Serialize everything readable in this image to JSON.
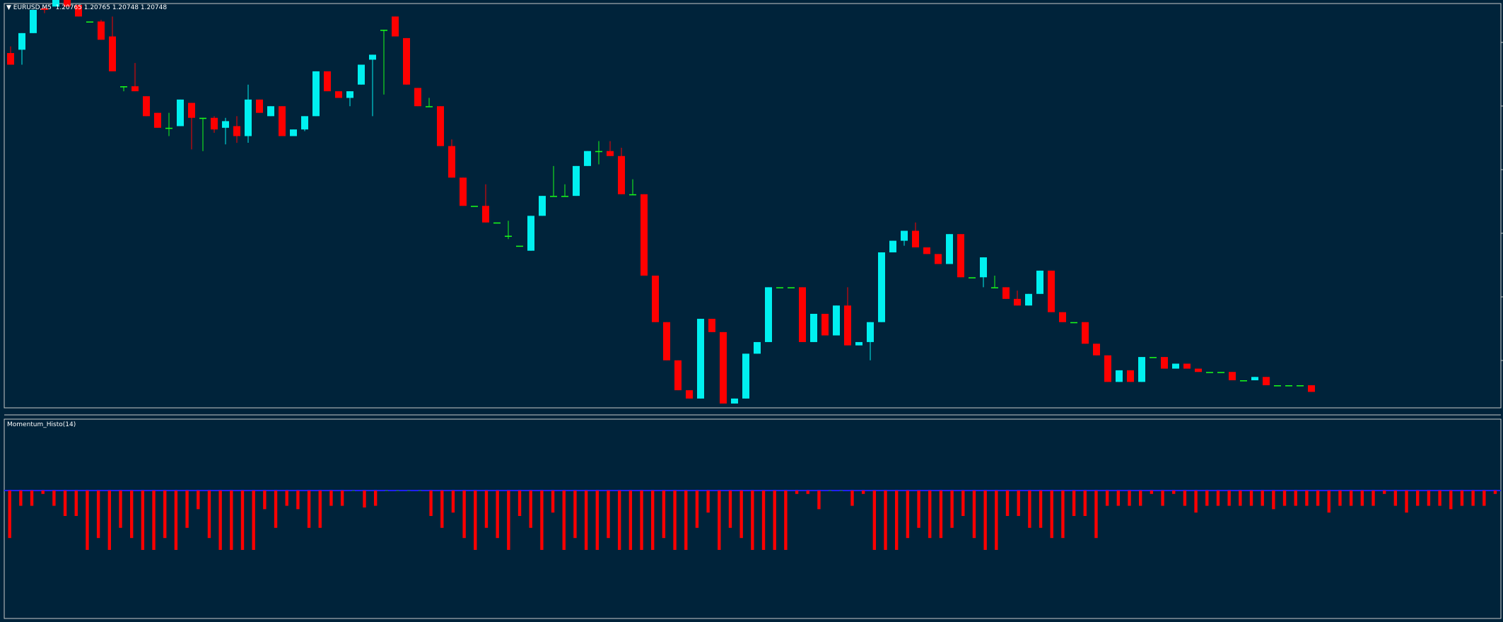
{
  "symbol_label": "EURUSD,M5",
  "ohlc_label": "1.20765 1.20765 1.20748 1.20748",
  "indicator_label": "Momentum_Histo(14)",
  "colors": {
    "background": "#00233a",
    "bull": "#00f0f0",
    "bear": "#ff0000",
    "doji": "#18ff18",
    "hist_pos": "#1e7d0f",
    "hist_neg": "#ff0000",
    "zero_line": "#2020ff",
    "grid": "#c0c0c0"
  },
  "chart_data": [
    {
      "type": "candlestick",
      "title": "EURUSD,M5",
      "ylim": [
        0,
        100
      ],
      "series": [
        {
          "name": "",
          "values": [
            {
              "o": 17,
              "h": 21,
              "l": 12,
              "c": 10
            },
            {
              "o": 19,
              "h": 24,
              "l": 10,
              "c": 29
            },
            {
              "o": 29,
              "h": 37,
              "l": 29,
              "c": 43
            },
            {
              "o": 44,
              "h": 45,
              "l": 41,
              "c": 43
            },
            {
              "o": 45,
              "h": 51,
              "l": 45,
              "c": 51
            },
            {
              "o": 50,
              "h": 52,
              "l": 45,
              "c": 45
            },
            {
              "o": 46,
              "h": 46,
              "l": 39,
              "c": 39
            },
            {
              "o": 36,
              "h": 36,
              "l": 36,
              "c": 36
            },
            {
              "o": 36,
              "h": 37,
              "l": 25,
              "c": 25
            },
            {
              "o": 27,
              "h": 39,
              "l": 6,
              "c": 6
            },
            {
              "o": -3,
              "h": -3,
              "l": -6,
              "c": -3
            },
            {
              "o": -3,
              "h": 11,
              "l": -6,
              "c": -6
            },
            {
              "o": -9,
              "h": -9,
              "l": -21,
              "c": -21
            },
            {
              "o": -19,
              "h": -19,
              "l": -28,
              "c": -28
            },
            {
              "o": -28,
              "h": -19,
              "l": -33,
              "c": -28
            },
            {
              "o": -27,
              "h": -11,
              "l": -27,
              "c": -11
            },
            {
              "o": -13,
              "h": -13,
              "l": -41,
              "c": -22
            },
            {
              "o": -22,
              "h": -22,
              "l": -42,
              "c": -22
            },
            {
              "o": -22,
              "h": -21,
              "l": -31,
              "c": -29
            },
            {
              "o": -28,
              "h": -22,
              "l": -38,
              "c": -24
            },
            {
              "o": -27,
              "h": -21,
              "l": -37,
              "c": -33
            },
            {
              "o": -33,
              "h": -2,
              "l": -37,
              "c": -11
            },
            {
              "o": -11,
              "h": -11,
              "l": -19,
              "c": -19
            },
            {
              "o": -21,
              "h": -21,
              "l": -21,
              "c": -15
            },
            {
              "o": -15,
              "h": -15,
              "l": -33,
              "c": -33
            },
            {
              "o": -33,
              "h": -29,
              "l": -33,
              "c": -29
            },
            {
              "o": -29,
              "h": -21,
              "l": -30,
              "c": -21
            },
            {
              "o": -21,
              "h": 6,
              "l": -21,
              "c": 6
            },
            {
              "o": 6,
              "h": 6,
              "l": -6,
              "c": -6
            },
            {
              "o": -6,
              "h": -6,
              "l": -10,
              "c": -10
            },
            {
              "o": -10,
              "h": -10,
              "l": -15,
              "c": -6
            },
            {
              "o": -2,
              "h": 10,
              "l": -2,
              "c": 10
            },
            {
              "o": 13,
              "h": 13,
              "l": -21,
              "c": 16
            },
            {
              "o": 31,
              "h": 31,
              "l": -8,
              "c": 31
            },
            {
              "o": 39,
              "h": 39,
              "l": 32,
              "c": 27
            },
            {
              "o": 26,
              "h": 26,
              "l": -2,
              "c": -2
            },
            {
              "o": -4,
              "h": -4,
              "l": -15,
              "c": -15
            },
            {
              "o": -15,
              "h": -10,
              "l": -15,
              "c": -15
            },
            {
              "o": -15,
              "h": -15,
              "l": -39,
              "c": -39
            },
            {
              "o": -39,
              "h": -35,
              "l": -58,
              "c": -58
            },
            {
              "o": -58,
              "h": -58,
              "l": -75,
              "c": -75
            },
            {
              "o": -75,
              "h": -75,
              "l": -75,
              "c": -75
            },
            {
              "o": -75,
              "h": -62,
              "l": -85,
              "c": -85
            },
            {
              "o": -85,
              "h": -85,
              "l": -85,
              "c": -85
            },
            {
              "o": -93,
              "h": -84,
              "l": -95,
              "c": -93
            },
            {
              "o": -99,
              "h": -99,
              "l": -99,
              "c": -99
            },
            {
              "o": -102,
              "h": -81,
              "l": -102,
              "c": -81
            },
            {
              "o": -81,
              "h": -69,
              "l": -81,
              "c": -69
            },
            {
              "o": -69,
              "h": -51,
              "l": -69,
              "c": -69
            },
            {
              "o": -69,
              "h": -62,
              "l": -69,
              "c": -69
            },
            {
              "o": -69,
              "h": -51,
              "l": -69,
              "c": -51
            },
            {
              "o": -51,
              "h": -42,
              "l": -51,
              "c": -42
            },
            {
              "o": -42,
              "h": -36,
              "l": -50,
              "c": -42
            },
            {
              "o": -42,
              "h": -36,
              "l": -45,
              "c": -45
            },
            {
              "o": -45,
              "h": -40,
              "l": -68,
              "c": -68
            },
            {
              "o": -68,
              "h": -59,
              "l": -68,
              "c": -68
            },
            {
              "o": -68,
              "h": -68,
              "l": -117,
              "c": -117
            },
            {
              "o": -117,
              "h": -117,
              "l": -145,
              "c": -145
            },
            {
              "o": -145,
              "h": -145,
              "l": -168,
              "c": -168
            },
            {
              "o": -168,
              "h": -168,
              "l": -186,
              "c": -186
            },
            {
              "o": -186,
              "h": -186,
              "l": -191,
              "c": -191
            },
            {
              "o": -191,
              "h": -191,
              "l": -143,
              "c": -143
            },
            {
              "o": -143,
              "h": -143,
              "l": -151,
              "c": -151
            },
            {
              "o": -151,
              "h": -151,
              "l": -194,
              "c": -194
            },
            {
              "o": -194,
              "h": -194,
              "l": -191,
              "c": -191
            },
            {
              "o": -191,
              "h": -164,
              "l": -191,
              "c": -164
            },
            {
              "o": -164,
              "h": -164,
              "l": -157,
              "c": -157
            },
            {
              "o": -157,
              "h": -164,
              "l": -154,
              "c": -124
            },
            {
              "o": -124,
              "h": -124,
              "l": -124,
              "c": -124
            },
            {
              "o": -124,
              "h": -124,
              "l": -124,
              "c": -124
            },
            {
              "o": -124,
              "h": -124,
              "l": -157,
              "c": -157
            },
            {
              "o": -157,
              "h": -157,
              "l": -140,
              "c": -140
            },
            {
              "o": -140,
              "h": -140,
              "l": -153,
              "c": -153
            },
            {
              "o": -153,
              "h": -135,
              "l": -153,
              "c": -135
            },
            {
              "o": -135,
              "h": -124,
              "l": -159,
              "c": -159
            },
            {
              "o": -159,
              "h": -159,
              "l": -157,
              "c": -157
            },
            {
              "o": -157,
              "h": -145,
              "l": -168,
              "c": -145
            },
            {
              "o": -145,
              "h": -145,
              "l": -145,
              "c": -103
            },
            {
              "o": -103,
              "h": -103,
              "l": -96,
              "c": -96
            },
            {
              "o": -96,
              "h": -96,
              "l": -99,
              "c": -90
            },
            {
              "o": -90,
              "h": -85,
              "l": -100,
              "c": -100
            },
            {
              "o": -100,
              "h": -100,
              "l": -104,
              "c": -104
            },
            {
              "o": -104,
              "h": -104,
              "l": -110,
              "c": -110
            },
            {
              "o": -110,
              "h": -92,
              "l": -110,
              "c": -92
            },
            {
              "o": -92,
              "h": -92,
              "l": -118,
              "c": -118
            },
            {
              "o": -118,
              "h": -118,
              "l": -118,
              "c": -118
            },
            {
              "o": -118,
              "h": -106,
              "l": -124,
              "c": -106
            },
            {
              "o": -124,
              "h": -117,
              "l": -124,
              "c": -124
            },
            {
              "o": -124,
              "h": -124,
              "l": -131,
              "c": -131
            },
            {
              "o": -131,
              "h": -126,
              "l": -135,
              "c": -135
            },
            {
              "o": -135,
              "h": -128,
              "l": -135,
              "c": -128
            },
            {
              "o": -128,
              "h": -114,
              "l": -128,
              "c": -114
            },
            {
              "o": -114,
              "h": -114,
              "l": -139,
              "c": -139
            },
            {
              "o": -139,
              "h": -139,
              "l": -145,
              "c": -145
            },
            {
              "o": -145,
              "h": -145,
              "l": -145,
              "c": -145
            },
            {
              "o": -145,
              "h": -145,
              "l": -158,
              "c": -158
            },
            {
              "o": -158,
              "h": -158,
              "l": -165,
              "c": -165
            },
            {
              "o": -165,
              "h": -165,
              "l": -181,
              "c": -181
            },
            {
              "o": -181,
              "h": -181,
              "l": -180,
              "c": -174
            },
            {
              "o": -174,
              "h": -174,
              "l": -181,
              "c": -181
            },
            {
              "o": -181,
              "h": -181,
              "l": -166,
              "c": -166
            },
            {
              "o": -166,
              "h": -166,
              "l": -166,
              "c": -166
            },
            {
              "o": -166,
              "h": -166,
              "l": -173,
              "c": -173
            },
            {
              "o": -173,
              "h": -170,
              "l": -173,
              "c": -170
            },
            {
              "o": -170,
              "h": -170,
              "l": -173,
              "c": -173
            },
            {
              "o": -173,
              "h": -173,
              "l": -175,
              "c": -175
            },
            {
              "o": -175,
              "h": -175,
              "l": -175,
              "c": -175
            },
            {
              "o": -175,
              "h": -175,
              "l": -175,
              "c": -175
            },
            {
              "o": -175,
              "h": -175,
              "l": -180,
              "c": -180
            },
            {
              "o": -180,
              "h": -180,
              "l": -180,
              "c": -180
            },
            {
              "o": -180,
              "h": -180,
              "l": -178,
              "c": -178
            },
            {
              "o": -178,
              "h": -178,
              "l": -183,
              "c": -183
            },
            {
              "o": -183,
              "h": -183,
              "l": -183,
              "c": -183
            },
            {
              "o": -183,
              "h": -183,
              "l": -183,
              "c": -183
            },
            {
              "o": -183,
              "h": -183,
              "l": -183,
              "c": -183
            },
            {
              "o": -183,
              "h": -183,
              "l": -187,
              "c": -187
            }
          ]
        }
      ]
    },
    {
      "type": "bar",
      "title": "Momentum_Histo(14)",
      "ylim": [
        -72,
        34
      ],
      "values": [
        -28,
        -9,
        -9,
        -2,
        -9,
        -15,
        -15,
        -35,
        -28,
        -35,
        -22,
        -28,
        -35,
        -35,
        -28,
        -35,
        -22,
        -11,
        -28,
        -35,
        -35,
        -35,
        -35,
        -11,
        -22,
        -9,
        -11,
        -22,
        -22,
        -9,
        -9,
        0,
        -10,
        -9,
        0,
        0,
        0,
        0,
        -15,
        -22,
        -13,
        -28,
        -35,
        -22,
        -28,
        -35,
        -15,
        -22,
        -35,
        -13,
        -35,
        -28,
        -35,
        -35,
        -28,
        -35,
        -35,
        -35,
        -35,
        -28,
        -35,
        -35,
        -22,
        -13,
        -35,
        -22,
        -28,
        -35,
        -35,
        -35,
        -35,
        -2,
        -2,
        -11,
        0,
        0,
        -9,
        -2,
        -35,
        -35,
        -35,
        -28,
        -22,
        -28,
        -28,
        -22,
        -15,
        -28,
        -35,
        -35,
        -15,
        -15,
        -22,
        -22,
        -28,
        -28,
        -15,
        -15,
        -28,
        -9,
        -9,
        -9,
        -9,
        -2,
        -9,
        -2,
        -9,
        -13,
        -9,
        -9,
        -9,
        -9,
        -9,
        -9,
        -11,
        -9,
        -9,
        -9,
        -9,
        -13,
        -9,
        -9,
        -9,
        -9,
        -2,
        -9,
        -13,
        -9,
        -9,
        -9,
        -11,
        -9,
        -9,
        -9,
        -2
      ]
    }
  ]
}
